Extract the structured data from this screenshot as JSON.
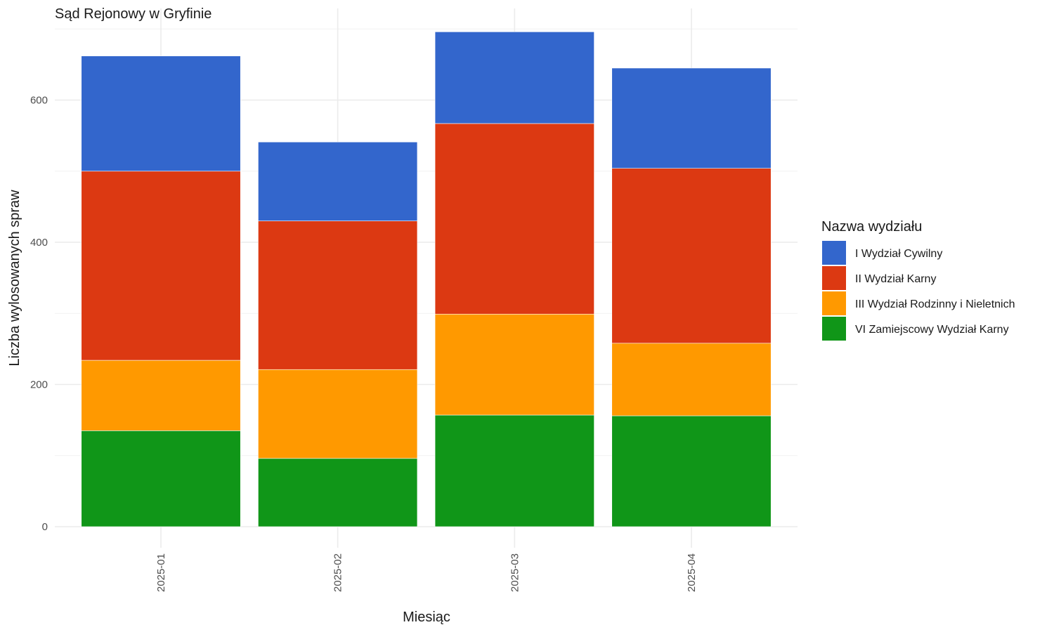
{
  "chart_data": {
    "type": "bar",
    "stacked": true,
    "title": "Sąd Rejonowy w Gryfinie",
    "xlabel": "Miesiąc",
    "ylabel": "Liczba wylosowanych spraw",
    "categories": [
      "2025-01",
      "2025-02",
      "2025-03",
      "2025-04"
    ],
    "ylim": [
      0,
      730
    ],
    "yticks": [
      0,
      200,
      400,
      600
    ],
    "grid": true,
    "legend": {
      "title": "Nazwa wydziału",
      "placement": "right"
    },
    "series": [
      {
        "name": "I Wydział Cywilny",
        "color": "#3366CC",
        "values": [
          162,
          111,
          129,
          141
        ]
      },
      {
        "name": "II Wydział Karny",
        "color": "#DC3912",
        "values": [
          266,
          209,
          268,
          246
        ]
      },
      {
        "name": "III Wydział Rodzinny i Nieletnich",
        "color": "#FF9900",
        "values": [
          99,
          125,
          142,
          102
        ]
      },
      {
        "name": "VI Zamiejscowy Wydział Karny",
        "color": "#109618",
        "values": [
          135,
          96,
          157,
          156
        ]
      }
    ]
  }
}
